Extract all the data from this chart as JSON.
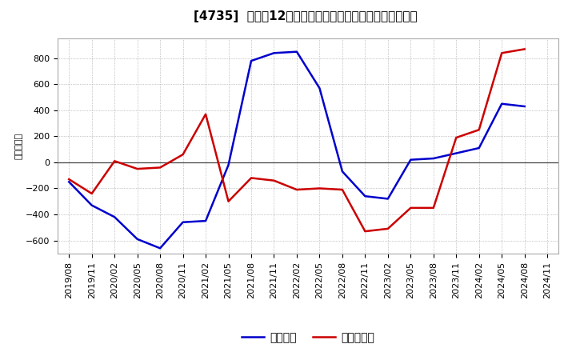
{
  "title": "[4735]  利益だ12か月移動合計の対前年同期増減額の推移",
  "ylabel": "（百万円）",
  "legend_labels": [
    "経常利益",
    "当期純利益"
  ],
  "xlabels": [
    "2019/08",
    "2019/11",
    "2020/02",
    "2020/05",
    "2020/08",
    "2020/11",
    "2021/02",
    "2021/05",
    "2021/08",
    "2021/11",
    "2022/02",
    "2022/05",
    "2022/08",
    "2022/11",
    "2023/02",
    "2023/05",
    "2023/08",
    "2023/11",
    "2024/02",
    "2024/05",
    "2024/08",
    "2024/11"
  ],
  "blue_values": [
    -150,
    -330,
    -420,
    -590,
    -660,
    -460,
    -450,
    -20,
    780,
    840,
    850,
    570,
    -70,
    -260,
    -280,
    20,
    30,
    70,
    110,
    450,
    430,
    null
  ],
  "red_values": [
    -130,
    -240,
    10,
    -50,
    -40,
    60,
    370,
    -300,
    -120,
    -140,
    -210,
    -200,
    -210,
    -530,
    -510,
    -350,
    -350,
    190,
    250,
    840,
    870,
    null
  ],
  "ylim": [
    -700,
    950
  ],
  "yticks": [
    -600,
    -400,
    -200,
    0,
    200,
    400,
    600,
    800
  ],
  "line_colors": [
    "#0000cc",
    "#cc0000"
  ],
  "line_width": 1.8,
  "background_color": "#ffffff",
  "plot_bg_color": "#ffffff",
  "grid_color": "#999999",
  "title_fontsize": 11,
  "axis_fontsize": 8,
  "legend_fontsize": 10
}
